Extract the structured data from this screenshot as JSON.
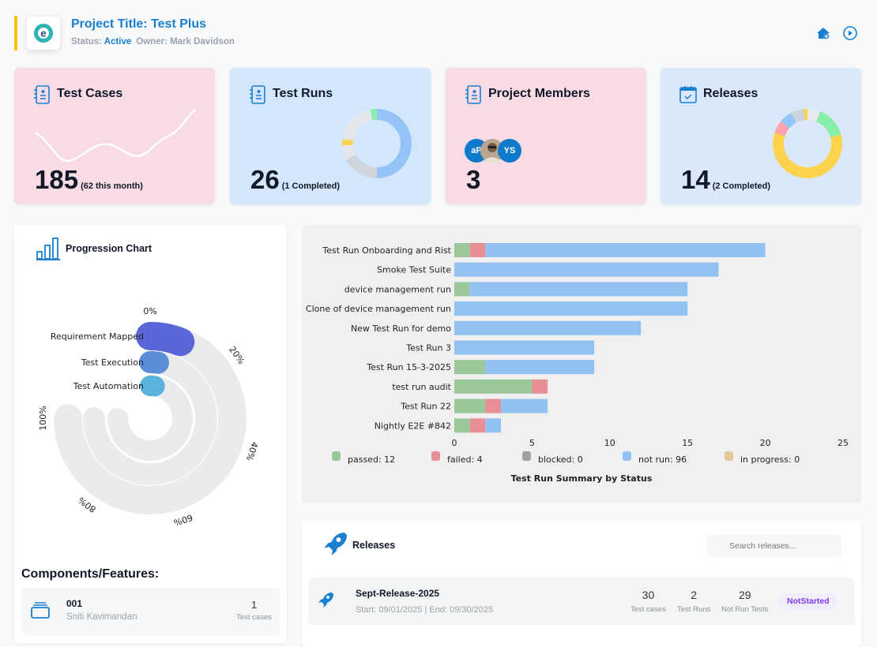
{
  "header": {
    "title": "Project Title: Test Plus",
    "status_label": "Status:",
    "status": "Active",
    "owner": "Owner: Mark Davidson"
  },
  "colors": {
    "accent": "#1a7fd1",
    "highlight": "#f5c400"
  },
  "cards": {
    "test_cases": {
      "title": "Test Cases",
      "count": "185",
      "note": "(62 this month)"
    },
    "test_runs": {
      "title": "Test Runs",
      "count": "26",
      "note": "(1 Completed)"
    },
    "members": {
      "title": "Project Members",
      "count": "3",
      "avatars": [
        "aP",
        "",
        "YS"
      ]
    },
    "releases": {
      "title": "Releases",
      "count": "14",
      "note": "(2 Completed)"
    }
  },
  "progression": {
    "title": "Progression Chart",
    "ticks": [
      "0%",
      "20%",
      "40%",
      "60%",
      "80%",
      "100%"
    ],
    "items": [
      {
        "label": "Requirement Mapped",
        "value": 8,
        "color": "#5b66d8"
      },
      {
        "label": "Test Execution",
        "value": 3,
        "color": "#5a8fd8"
      },
      {
        "label": "Test Automation",
        "value": 3,
        "color": "#5ab3dc"
      }
    ]
  },
  "components": {
    "title": "Components/Features:",
    "items": [
      {
        "id": "001",
        "owner": "Sniti Kavimandan",
        "count": "1",
        "count_label": "Test cases"
      }
    ]
  },
  "chart_data": {
    "type": "bar",
    "orientation": "horizontal",
    "stacked": true,
    "title": "Test Run Summary by Status",
    "xlim": [
      0,
      25
    ],
    "xticks": [
      "0",
      "5",
      "10",
      "15",
      "20",
      "25"
    ],
    "legend_position": "bottom",
    "categories": [
      "Test Run Onboarding and Rist",
      "Smoke Test Suite",
      "device management run",
      "Clone of device management run",
      "New Test Run for demo",
      "Test Run 3",
      "Test Run 15-3-2025",
      "test run audit",
      "Test Run 22",
      "Nightly E2E #842"
    ],
    "series": [
      {
        "name": "passed: 12",
        "color": "#9ac89a",
        "values": [
          1,
          0,
          1,
          0,
          0,
          0,
          2,
          5,
          2,
          1
        ]
      },
      {
        "name": "failed: 4",
        "color": "#e88e95",
        "values": [
          1,
          0,
          0,
          0,
          0,
          0,
          0,
          1,
          1,
          1
        ]
      },
      {
        "name": "blocked: 0",
        "color": "#a0a0a0",
        "values": [
          0,
          0,
          0,
          0,
          0,
          0,
          0,
          0,
          0,
          0
        ]
      },
      {
        "name": "not run: 96",
        "color": "#92c2f2",
        "values": [
          18,
          17,
          14,
          15,
          12,
          9,
          7,
          0,
          3,
          1
        ]
      },
      {
        "name": "in progress: 0",
        "color": "#e6c99a",
        "values": [
          0,
          0,
          0,
          0,
          0,
          0,
          0,
          0,
          0,
          0
        ]
      }
    ]
  },
  "releases_panel": {
    "title": "Releases",
    "search_placeholder": "Search releases...",
    "items": [
      {
        "name": "Sept-Release-2025",
        "dates": "Start: 09/01/2025 | End: 09/30/2025",
        "test_cases": "30",
        "test_cases_label": "Test cases",
        "test_runs": "2",
        "test_runs_label": "Test Runs",
        "not_run": "29",
        "not_run_label": "Not Run Tests",
        "status": "NotStarted"
      }
    ]
  }
}
